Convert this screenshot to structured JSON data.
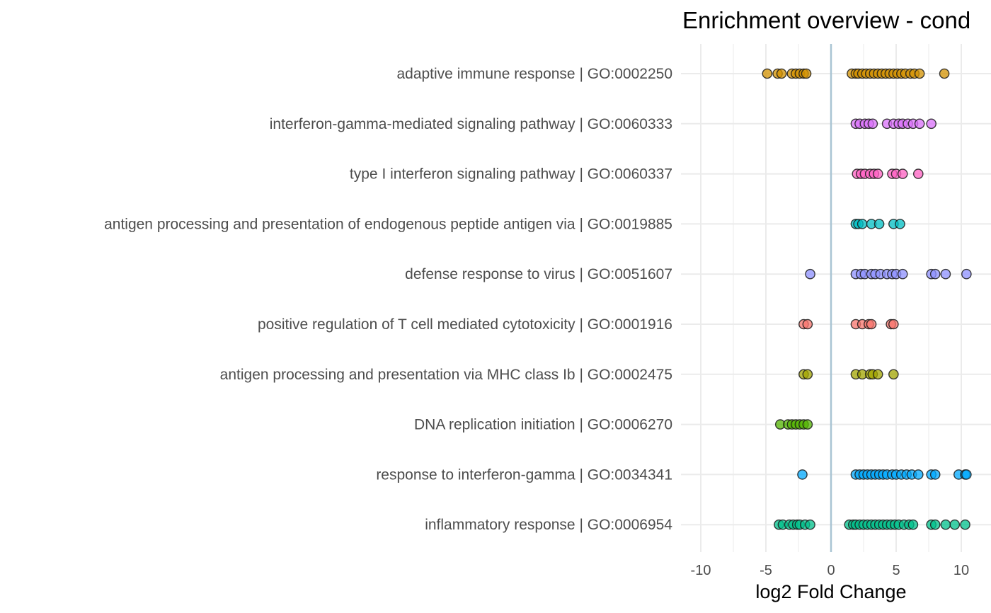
{
  "chart_data": {
    "type": "scatter",
    "title": "Enrichment overview - cond",
    "xlabel": "log2 Fold Change",
    "ylabel": "",
    "xlim": [
      -11,
      11
    ],
    "x_ticks": [
      -10,
      -5,
      0,
      5,
      10
    ],
    "x_tick_labels": [
      "-10",
      "-5",
      "0",
      "5",
      "10"
    ],
    "grid": true,
    "reference_line": {
      "x": 0,
      "color": "#a9c4d3"
    },
    "legend": "none",
    "series": [
      {
        "name": "adaptive immune response | GO:0002250",
        "color": "#D39200",
        "x": [
          -4.9,
          -4.1,
          -3.8,
          -3.0,
          -2.7,
          -2.4,
          -2.1,
          -1.9,
          1.6,
          1.9,
          2.1,
          2.4,
          2.7,
          3.0,
          3.3,
          3.6,
          3.9,
          4.2,
          4.5,
          4.8,
          5.1,
          5.4,
          5.7,
          6.1,
          6.4,
          6.8,
          8.7
        ]
      },
      {
        "name": "interferon-gamma-mediated signaling pathway | GO:0060333",
        "color": "#DB72FB",
        "x": [
          1.9,
          2.2,
          2.6,
          2.9,
          3.2,
          4.3,
          4.8,
          5.2,
          5.5,
          5.9,
          6.3,
          6.8,
          7.7
        ]
      },
      {
        "name": "type I interferon signaling pathway | GO:0060337",
        "color": "#FF61C3",
        "x": [
          2.0,
          2.3,
          2.6,
          3.0,
          3.3,
          3.6,
          4.7,
          5.0,
          5.5,
          6.7
        ]
      },
      {
        "name": "antigen processing and presentation of endogenous peptide antigen via  | GO:0019885",
        "color": "#00BFC4",
        "x": [
          1.9,
          2.1,
          2.4,
          3.1,
          3.7,
          4.8,
          5.3
        ]
      },
      {
        "name": "defense response to virus | GO:0051607",
        "color": "#8F91FF",
        "x": [
          -1.6,
          1.9,
          2.3,
          2.6,
          3.1,
          3.4,
          3.8,
          4.3,
          4.7,
          5.0,
          5.5,
          7.7,
          8.0,
          8.8,
          10.4
        ]
      },
      {
        "name": "positive regulation of T cell mediated cytotoxicity | GO:0001916",
        "color": "#F8766D",
        "x": [
          -2.1,
          -1.8,
          1.9,
          2.4,
          2.9,
          3.1,
          4.6,
          4.8
        ]
      },
      {
        "name": "antigen processing and presentation via MHC class Ib | GO:0002475",
        "color": "#A3A500",
        "x": [
          -2.1,
          -1.8,
          1.9,
          2.4,
          3.0,
          3.2,
          3.6,
          4.8
        ]
      },
      {
        "name": "DNA replication initiation | GO:0006270",
        "color": "#53B400",
        "x": [
          -3.9,
          -3.3,
          -3.0,
          -2.7,
          -2.4,
          -2.1,
          -1.8
        ]
      },
      {
        "name": "response to interferon-gamma | GO:0034341",
        "color": "#00A9FF",
        "x": [
          -2.2,
          1.9,
          2.2,
          2.5,
          2.8,
          3.1,
          3.4,
          3.7,
          4.0,
          4.3,
          4.7,
          5.0,
          5.4,
          5.8,
          6.2,
          6.7,
          7.7,
          8.0,
          9.8,
          10.3,
          10.4
        ]
      },
      {
        "name": "inflammatory response | GO:0006954",
        "color": "#00C08B",
        "x": [
          -4.0,
          -3.7,
          -3.2,
          -2.9,
          -2.6,
          -2.4,
          -2.0,
          -1.6,
          1.4,
          1.7,
          1.9,
          2.2,
          2.5,
          2.8,
          3.1,
          3.4,
          3.7,
          4.0,
          4.3,
          4.6,
          4.9,
          5.2,
          5.6,
          6.0,
          6.3,
          7.7,
          8.0,
          8.8,
          9.5,
          10.3
        ]
      }
    ]
  }
}
